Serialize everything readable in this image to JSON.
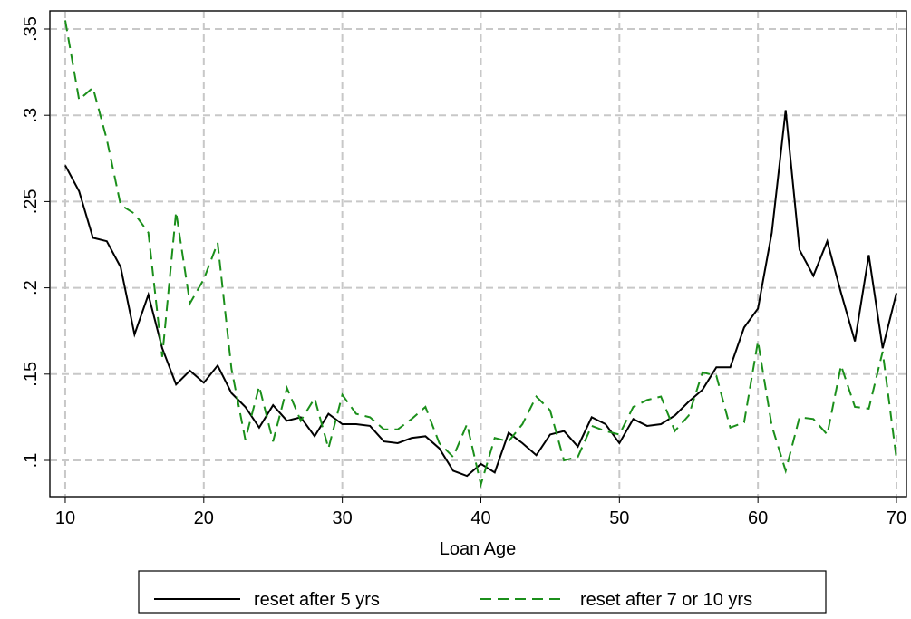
{
  "chart_data": {
    "type": "line",
    "x_label": "Loan Age",
    "x": [
      10,
      11,
      12,
      13,
      14,
      15,
      16,
      17,
      18,
      19,
      20,
      21,
      22,
      23,
      24,
      25,
      26,
      27,
      28,
      29,
      30,
      31,
      32,
      33,
      34,
      35,
      36,
      37,
      38,
      39,
      40,
      41,
      42,
      43,
      44,
      45,
      46,
      47,
      48,
      49,
      50,
      51,
      52,
      53,
      54,
      55,
      56,
      57,
      58,
      59,
      60,
      61,
      62,
      63,
      64,
      65,
      66,
      67,
      68,
      69,
      70
    ],
    "series": [
      {
        "name": "reset after 5 yrs",
        "color": "#000000",
        "dash": false,
        "values": [
          0.271,
          0.256,
          0.229,
          0.227,
          0.212,
          0.173,
          0.196,
          0.165,
          0.144,
          0.152,
          0.145,
          0.155,
          0.139,
          0.131,
          0.119,
          0.132,
          0.123,
          0.125,
          0.114,
          0.127,
          0.121,
          0.121,
          0.12,
          0.111,
          0.11,
          0.113,
          0.114,
          0.107,
          0.094,
          0.091,
          0.098,
          0.093,
          0.116,
          0.11,
          0.103,
          0.115,
          0.117,
          0.108,
          0.125,
          0.121,
          0.11,
          0.124,
          0.12,
          0.121,
          0.126,
          0.134,
          0.141,
          0.154,
          0.154,
          0.177,
          0.188,
          0.232,
          0.303,
          0.222,
          0.207,
          0.227,
          0.197,
          0.169,
          0.219,
          0.165,
          0.197
        ]
      },
      {
        "name": "reset after 7 or 10 yrs",
        "color": "#1b8f1b",
        "dash": true,
        "values": [
          0.355,
          0.309,
          0.316,
          0.286,
          0.248,
          0.243,
          0.232,
          0.16,
          0.244,
          0.191,
          0.205,
          0.226,
          0.153,
          0.112,
          0.143,
          0.111,
          0.142,
          0.123,
          0.136,
          0.107,
          0.138,
          0.127,
          0.125,
          0.118,
          0.118,
          0.124,
          0.131,
          0.11,
          0.102,
          0.121,
          0.086,
          0.113,
          0.111,
          0.121,
          0.137,
          0.129,
          0.1,
          0.102,
          0.12,
          0.117,
          0.115,
          0.131,
          0.135,
          0.137,
          0.117,
          0.126,
          0.151,
          0.149,
          0.119,
          0.122,
          0.169,
          0.12,
          0.094,
          0.125,
          0.124,
          0.115,
          0.155,
          0.131,
          0.13,
          0.163,
          0.101
        ]
      }
    ],
    "xlim": [
      8.89,
      70.72
    ],
    "xticks": [
      10,
      20,
      30,
      40,
      50,
      60,
      70
    ],
    "ylim": [
      0.079,
      0.3605
    ],
    "yticks": [
      {
        "value": 0.1,
        "label": ".1"
      },
      {
        "value": 0.15,
        "label": ".15"
      },
      {
        "value": 0.2,
        "label": ".2"
      },
      {
        "value": 0.25,
        "label": ".25"
      },
      {
        "value": 0.3,
        "label": ".3"
      },
      {
        "value": 0.35,
        "label": ".35"
      }
    ],
    "grid": true,
    "legend": "bottom"
  }
}
